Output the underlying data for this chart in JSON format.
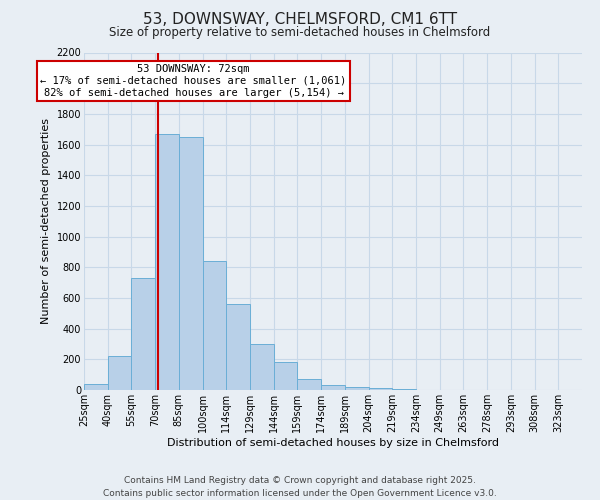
{
  "title": "53, DOWNSWAY, CHELMSFORD, CM1 6TT",
  "subtitle": "Size of property relative to semi-detached houses in Chelmsford",
  "xlabel": "Distribution of semi-detached houses by size in Chelmsford",
  "ylabel": "Number of semi-detached properties",
  "bin_labels": [
    "25sqm",
    "40sqm",
    "55sqm",
    "70sqm",
    "85sqm",
    "100sqm",
    "114sqm",
    "129sqm",
    "144sqm",
    "159sqm",
    "174sqm",
    "189sqm",
    "204sqm",
    "219sqm",
    "234sqm",
    "249sqm",
    "263sqm",
    "278sqm",
    "293sqm",
    "308sqm",
    "323sqm"
  ],
  "bar_values": [
    40,
    220,
    730,
    1670,
    1650,
    840,
    560,
    300,
    180,
    70,
    35,
    20,
    10,
    5,
    2,
    1,
    0,
    0,
    0,
    0,
    0
  ],
  "bar_color": "#b8d0e8",
  "bar_edgecolor": "#6aaed6",
  "vline_color": "#cc0000",
  "annotation_text": "53 DOWNSWAY: 72sqm\n← 17% of semi-detached houses are smaller (1,061)\n82% of semi-detached houses are larger (5,154) →",
  "annotation_box_edgecolor": "#cc0000",
  "annotation_box_facecolor": "#ffffff",
  "ylim": [
    0,
    2200
  ],
  "yticks": [
    0,
    200,
    400,
    600,
    800,
    1000,
    1200,
    1400,
    1600,
    1800,
    2000,
    2200
  ],
  "grid_color": "#c8d8e8",
  "background_color": "#e8eef4",
  "footer_line1": "Contains HM Land Registry data © Crown copyright and database right 2025.",
  "footer_line2": "Contains public sector information licensed under the Open Government Licence v3.0.",
  "title_fontsize": 11,
  "subtitle_fontsize": 8.5,
  "axis_label_fontsize": 8,
  "tick_fontsize": 7,
  "footer_fontsize": 6.5,
  "annotation_fontsize": 7.5
}
